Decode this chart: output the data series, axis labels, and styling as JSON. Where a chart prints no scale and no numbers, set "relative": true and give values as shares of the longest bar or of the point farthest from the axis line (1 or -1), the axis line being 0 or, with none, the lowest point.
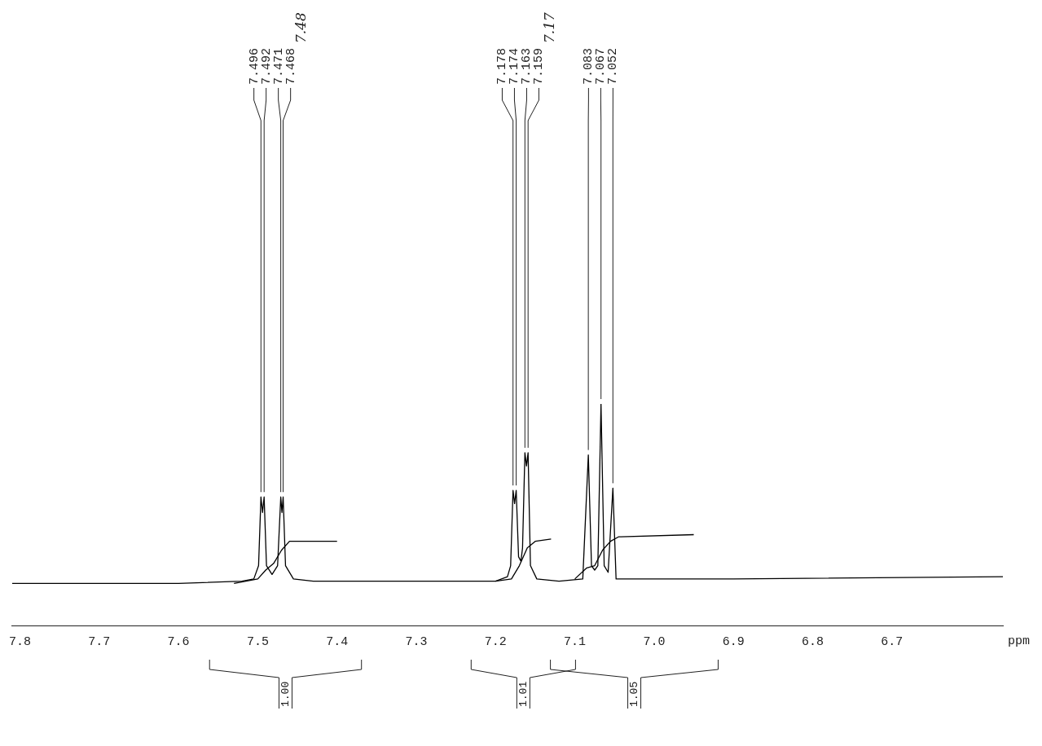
{
  "chart_data": {
    "type": "line",
    "relative": true,
    "xlabel": "ppm",
    "xlim": [
      7.81,
      6.56
    ],
    "xticks": [
      {
        "value": 7.8,
        "label": "7.8"
      },
      {
        "value": 7.7,
        "label": "7.7"
      },
      {
        "value": 7.6,
        "label": "7.6"
      },
      {
        "value": 7.5,
        "label": "7.5"
      },
      {
        "value": 7.4,
        "label": "7.4"
      },
      {
        "value": 7.3,
        "label": "7.3"
      },
      {
        "value": 7.2,
        "label": "7.2"
      },
      {
        "value": 7.1,
        "label": "7.1"
      },
      {
        "value": 7.0,
        "label": "7.0"
      },
      {
        "value": 6.9,
        "label": "6.9"
      },
      {
        "value": 6.8,
        "label": "6.8"
      },
      {
        "value": 6.7,
        "label": "6.7"
      }
    ],
    "grid": false,
    "legend": false,
    "marker": "none",
    "line_style": "solid",
    "series": [
      {
        "color": "#000000",
        "x": [
          7.81,
          7.6,
          7.52,
          7.505,
          7.499,
          7.496,
          7.494,
          7.492,
          7.489,
          7.482,
          7.475,
          7.471,
          7.4695,
          7.468,
          7.465,
          7.455,
          7.43,
          7.3,
          7.2,
          7.185,
          7.181,
          7.178,
          7.176,
          7.174,
          7.171,
          7.168,
          7.166,
          7.163,
          7.161,
          7.159,
          7.156,
          7.148,
          7.12,
          7.09,
          7.083,
          7.079,
          7.075,
          7.071,
          7.067,
          7.063,
          7.058,
          7.052,
          7.048,
          7.03,
          6.9,
          6.56
        ],
        "values": [
          0.19,
          0.19,
          0.2,
          0.21,
          0.27,
          0.58,
          0.51,
          0.58,
          0.27,
          0.23,
          0.27,
          0.58,
          0.51,
          0.58,
          0.27,
          0.21,
          0.2,
          0.2,
          0.2,
          0.22,
          0.27,
          0.61,
          0.55,
          0.61,
          0.31,
          0.29,
          0.35,
          0.78,
          0.72,
          0.78,
          0.27,
          0.21,
          0.2,
          0.21,
          0.77,
          0.27,
          0.25,
          0.27,
          1,
          0.27,
          0.24,
          0.62,
          0.21,
          0.21,
          0.21,
          0.22
        ]
      },
      {
        "color": "#000000",
        "x": [
          7.53,
          7.5,
          7.49,
          7.48,
          7.47,
          7.46,
          7.4
        ],
        "values": [
          0.19,
          0.21,
          0.25,
          0.28,
          0.34,
          0.38,
          0.38
        ]
      },
      {
        "color": "#000000",
        "x": [
          7.2,
          7.18,
          7.17,
          7.16,
          7.15,
          7.13
        ],
        "values": [
          0.2,
          0.21,
          0.27,
          0.35,
          0.38,
          0.39
        ]
      },
      {
        "color": "#000000",
        "x": [
          7.1,
          7.085,
          7.075,
          7.065,
          7.055,
          7.045,
          6.95
        ],
        "values": [
          0.21,
          0.26,
          0.27,
          0.34,
          0.38,
          0.4,
          0.41
        ]
      }
    ],
    "annotations": [
      {
        "text": "7.496",
        "x": 7.496,
        "y": 0.58
      },
      {
        "text": "7.492",
        "x": 7.492,
        "y": 0.58
      },
      {
        "text": "7.471",
        "x": 7.471,
        "y": 0.58
      },
      {
        "text": "7.468",
        "x": 7.468,
        "y": 0.58
      },
      {
        "text": "7.178",
        "x": 7.178,
        "y": 0.61
      },
      {
        "text": "7.174",
        "x": 7.174,
        "y": 0.61
      },
      {
        "text": "7.163",
        "x": 7.163,
        "y": 0.78
      },
      {
        "text": "7.159",
        "x": 7.159,
        "y": 0.78
      },
      {
        "text": "7.083",
        "x": 7.083,
        "y": 0.77
      },
      {
        "text": "7.067",
        "x": 7.067,
        "y": 1
      },
      {
        "text": "7.052",
        "x": 7.052,
        "y": 0.62
      },
      "1.00",
      "1.01",
      "1.05",
      "7.48",
      "7.17"
    ]
  }
}
